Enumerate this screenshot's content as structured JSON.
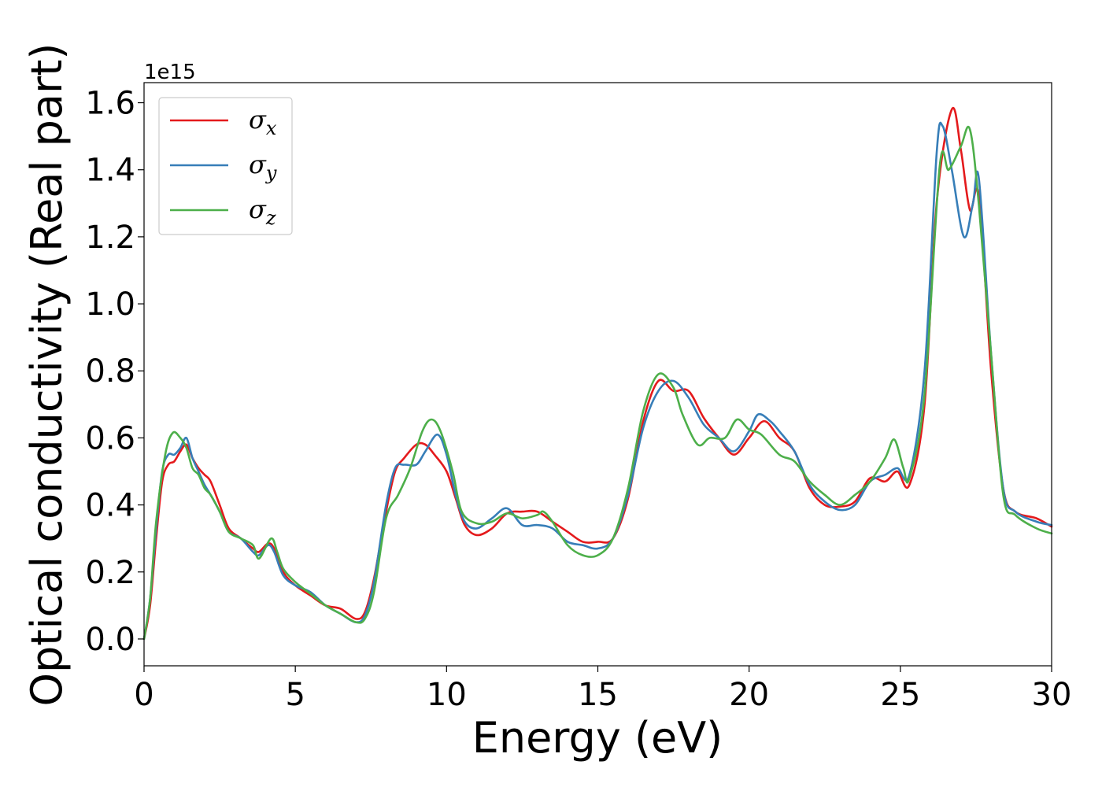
{
  "chart_data": {
    "type": "line",
    "xlabel": "Energy (eV)",
    "ylabel": "Optical conductivity (Real part)",
    "y_offset_label": "1e15",
    "xlim": [
      0,
      30
    ],
    "ylim": [
      -0.08,
      1.66
    ],
    "xticks": [
      0,
      5,
      10,
      15,
      20,
      25,
      30
    ],
    "xtick_labels": [
      "0",
      "5",
      "10",
      "15",
      "20",
      "25",
      "30"
    ],
    "yticks": [
      0.0,
      0.2,
      0.4,
      0.6,
      0.8,
      1.0,
      1.2,
      1.4,
      1.6
    ],
    "ytick_labels": [
      "0.0",
      "0.2",
      "0.4",
      "0.6",
      "0.8",
      "1.0",
      "1.2",
      "1.4",
      "1.6"
    ],
    "grid": false,
    "legend_position": "top-left",
    "series": [
      {
        "name": "σx",
        "legend_base": "σ",
        "legend_sub": "x",
        "color": "#e41a1c",
        "points": [
          [
            0,
            0.0
          ],
          [
            0.2,
            0.1
          ],
          [
            0.4,
            0.3
          ],
          [
            0.6,
            0.47
          ],
          [
            0.8,
            0.52
          ],
          [
            1.0,
            0.53
          ],
          [
            1.2,
            0.56
          ],
          [
            1.4,
            0.58
          ],
          [
            1.6,
            0.54
          ],
          [
            1.8,
            0.51
          ],
          [
            2.0,
            0.49
          ],
          [
            2.2,
            0.47
          ],
          [
            2.5,
            0.4
          ],
          [
            2.8,
            0.33
          ],
          [
            3.2,
            0.3
          ],
          [
            3.6,
            0.27
          ],
          [
            3.8,
            0.26
          ],
          [
            4.1,
            0.285
          ],
          [
            4.3,
            0.27
          ],
          [
            4.6,
            0.2
          ],
          [
            5.0,
            0.16
          ],
          [
            5.5,
            0.13
          ],
          [
            6.0,
            0.1
          ],
          [
            6.5,
            0.09
          ],
          [
            7.0,
            0.06
          ],
          [
            7.3,
            0.08
          ],
          [
            7.6,
            0.18
          ],
          [
            8.0,
            0.38
          ],
          [
            8.3,
            0.5
          ],
          [
            8.6,
            0.54
          ],
          [
            9.0,
            0.58
          ],
          [
            9.3,
            0.58
          ],
          [
            9.6,
            0.55
          ],
          [
            10.0,
            0.5
          ],
          [
            10.3,
            0.42
          ],
          [
            10.6,
            0.34
          ],
          [
            11.0,
            0.31
          ],
          [
            11.5,
            0.33
          ],
          [
            12.0,
            0.375
          ],
          [
            12.5,
            0.38
          ],
          [
            13.0,
            0.38
          ],
          [
            13.5,
            0.35
          ],
          [
            14.0,
            0.32
          ],
          [
            14.5,
            0.29
          ],
          [
            15.0,
            0.29
          ],
          [
            15.5,
            0.3
          ],
          [
            16.0,
            0.42
          ],
          [
            16.5,
            0.65
          ],
          [
            17.0,
            0.77
          ],
          [
            17.5,
            0.74
          ],
          [
            18.0,
            0.74
          ],
          [
            18.5,
            0.66
          ],
          [
            19.0,
            0.6
          ],
          [
            19.5,
            0.55
          ],
          [
            20.0,
            0.6
          ],
          [
            20.5,
            0.65
          ],
          [
            21.0,
            0.6
          ],
          [
            21.5,
            0.56
          ],
          [
            22.0,
            0.45
          ],
          [
            22.5,
            0.4
          ],
          [
            23.0,
            0.395
          ],
          [
            23.5,
            0.41
          ],
          [
            24.0,
            0.48
          ],
          [
            24.5,
            0.47
          ],
          [
            24.9,
            0.5
          ],
          [
            25.3,
            0.46
          ],
          [
            25.8,
            0.7
          ],
          [
            26.2,
            1.3
          ],
          [
            26.7,
            1.58
          ],
          [
            27.0,
            1.46
          ],
          [
            27.3,
            1.28
          ],
          [
            27.6,
            1.32
          ],
          [
            28.0,
            0.8
          ],
          [
            28.4,
            0.45
          ],
          [
            28.8,
            0.38
          ],
          [
            29.5,
            0.36
          ],
          [
            30.0,
            0.335
          ]
        ]
      },
      {
        "name": "σy",
        "legend_base": "σ",
        "legend_sub": "y",
        "color": "#377eb8",
        "points": [
          [
            0,
            0.0
          ],
          [
            0.2,
            0.12
          ],
          [
            0.4,
            0.33
          ],
          [
            0.6,
            0.5
          ],
          [
            0.8,
            0.55
          ],
          [
            1.0,
            0.55
          ],
          [
            1.2,
            0.57
          ],
          [
            1.4,
            0.6
          ],
          [
            1.6,
            0.54
          ],
          [
            1.8,
            0.5
          ],
          [
            2.0,
            0.46
          ],
          [
            2.2,
            0.43
          ],
          [
            2.5,
            0.38
          ],
          [
            2.8,
            0.32
          ],
          [
            3.2,
            0.3
          ],
          [
            3.6,
            0.26
          ],
          [
            3.8,
            0.25
          ],
          [
            4.1,
            0.28
          ],
          [
            4.3,
            0.26
          ],
          [
            4.6,
            0.19
          ],
          [
            5.0,
            0.16
          ],
          [
            5.5,
            0.14
          ],
          [
            6.0,
            0.1
          ],
          [
            6.5,
            0.075
          ],
          [
            7.0,
            0.05
          ],
          [
            7.3,
            0.07
          ],
          [
            7.6,
            0.17
          ],
          [
            8.0,
            0.4
          ],
          [
            8.3,
            0.51
          ],
          [
            8.6,
            0.52
          ],
          [
            9.0,
            0.52
          ],
          [
            9.3,
            0.56
          ],
          [
            9.7,
            0.61
          ],
          [
            10.0,
            0.55
          ],
          [
            10.3,
            0.43
          ],
          [
            10.6,
            0.35
          ],
          [
            11.0,
            0.33
          ],
          [
            11.5,
            0.36
          ],
          [
            12.0,
            0.39
          ],
          [
            12.5,
            0.34
          ],
          [
            13.0,
            0.34
          ],
          [
            13.5,
            0.33
          ],
          [
            14.0,
            0.29
          ],
          [
            14.5,
            0.28
          ],
          [
            15.0,
            0.27
          ],
          [
            15.5,
            0.3
          ],
          [
            16.0,
            0.43
          ],
          [
            16.5,
            0.63
          ],
          [
            17.0,
            0.74
          ],
          [
            17.5,
            0.77
          ],
          [
            18.0,
            0.72
          ],
          [
            18.5,
            0.64
          ],
          [
            19.0,
            0.6
          ],
          [
            19.5,
            0.56
          ],
          [
            20.0,
            0.62
          ],
          [
            20.3,
            0.67
          ],
          [
            20.7,
            0.65
          ],
          [
            21.0,
            0.62
          ],
          [
            21.5,
            0.56
          ],
          [
            22.0,
            0.46
          ],
          [
            22.5,
            0.41
          ],
          [
            23.0,
            0.385
          ],
          [
            23.5,
            0.4
          ],
          [
            24.0,
            0.47
          ],
          [
            24.5,
            0.49
          ],
          [
            24.9,
            0.51
          ],
          [
            25.3,
            0.49
          ],
          [
            25.8,
            0.8
          ],
          [
            26.2,
            1.45
          ],
          [
            26.4,
            1.53
          ],
          [
            26.7,
            1.4
          ],
          [
            27.1,
            1.2
          ],
          [
            27.4,
            1.3
          ],
          [
            27.6,
            1.37
          ],
          [
            28.0,
            0.85
          ],
          [
            28.4,
            0.45
          ],
          [
            28.8,
            0.38
          ],
          [
            29.5,
            0.35
          ],
          [
            30.0,
            0.34
          ]
        ]
      },
      {
        "name": "σz",
        "legend_base": "σ",
        "legend_sub": "z",
        "color": "#4daf4a",
        "points": [
          [
            0,
            0.0
          ],
          [
            0.2,
            0.12
          ],
          [
            0.4,
            0.35
          ],
          [
            0.7,
            0.55
          ],
          [
            0.95,
            0.615
          ],
          [
            1.2,
            0.6
          ],
          [
            1.4,
            0.57
          ],
          [
            1.6,
            0.51
          ],
          [
            1.8,
            0.49
          ],
          [
            2.0,
            0.45
          ],
          [
            2.2,
            0.43
          ],
          [
            2.5,
            0.38
          ],
          [
            2.8,
            0.32
          ],
          [
            3.2,
            0.3
          ],
          [
            3.6,
            0.28
          ],
          [
            3.8,
            0.24
          ],
          [
            4.2,
            0.3
          ],
          [
            4.4,
            0.26
          ],
          [
            4.6,
            0.21
          ],
          [
            5.0,
            0.17
          ],
          [
            5.5,
            0.135
          ],
          [
            6.0,
            0.1
          ],
          [
            6.5,
            0.075
          ],
          [
            7.0,
            0.05
          ],
          [
            7.3,
            0.06
          ],
          [
            7.6,
            0.14
          ],
          [
            8.0,
            0.36
          ],
          [
            8.4,
            0.43
          ],
          [
            8.8,
            0.51
          ],
          [
            9.2,
            0.62
          ],
          [
            9.5,
            0.655
          ],
          [
            9.8,
            0.62
          ],
          [
            10.2,
            0.5
          ],
          [
            10.5,
            0.38
          ],
          [
            11.0,
            0.345
          ],
          [
            11.5,
            0.35
          ],
          [
            12.0,
            0.375
          ],
          [
            12.5,
            0.36
          ],
          [
            13.0,
            0.37
          ],
          [
            13.2,
            0.38
          ],
          [
            13.5,
            0.35
          ],
          [
            14.0,
            0.28
          ],
          [
            14.5,
            0.25
          ],
          [
            15.0,
            0.25
          ],
          [
            15.5,
            0.3
          ],
          [
            16.0,
            0.45
          ],
          [
            16.5,
            0.68
          ],
          [
            17.0,
            0.79
          ],
          [
            17.5,
            0.75
          ],
          [
            17.8,
            0.67
          ],
          [
            18.3,
            0.58
          ],
          [
            18.7,
            0.6
          ],
          [
            19.2,
            0.6
          ],
          [
            19.6,
            0.655
          ],
          [
            20.0,
            0.625
          ],
          [
            20.4,
            0.61
          ],
          [
            21.0,
            0.55
          ],
          [
            21.5,
            0.53
          ],
          [
            22.0,
            0.47
          ],
          [
            22.5,
            0.43
          ],
          [
            23.0,
            0.4
          ],
          [
            23.5,
            0.43
          ],
          [
            24.0,
            0.47
          ],
          [
            24.5,
            0.54
          ],
          [
            24.8,
            0.595
          ],
          [
            25.1,
            0.51
          ],
          [
            25.3,
            0.48
          ],
          [
            25.8,
            0.73
          ],
          [
            26.3,
            1.41
          ],
          [
            26.6,
            1.4
          ],
          [
            27.0,
            1.47
          ],
          [
            27.3,
            1.52
          ],
          [
            27.6,
            1.29
          ],
          [
            28.0,
            0.85
          ],
          [
            28.4,
            0.43
          ],
          [
            28.8,
            0.37
          ],
          [
            29.5,
            0.33
          ],
          [
            30.0,
            0.315
          ]
        ]
      }
    ]
  }
}
